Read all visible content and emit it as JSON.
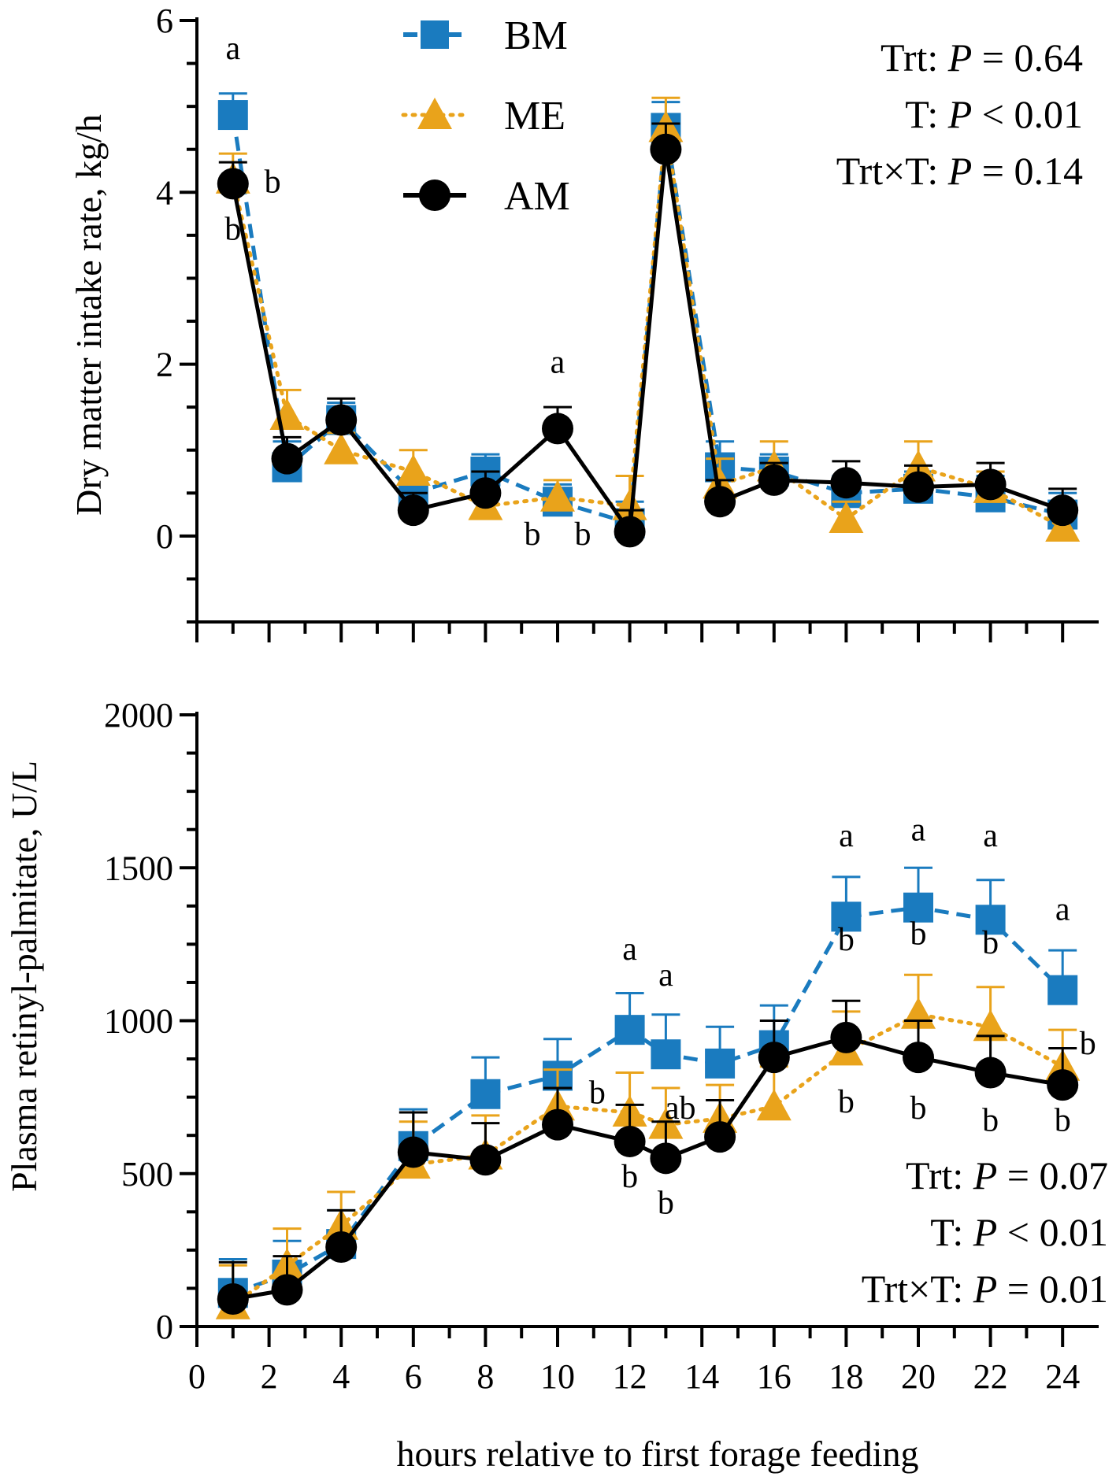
{
  "colors": {
    "BM": "#1a7bbf",
    "ME": "#e9a31b",
    "AM": "#000000"
  },
  "legend": {
    "BM": "BM",
    "ME": "ME",
    "AM": "AM"
  },
  "xlabel": "hours relative to first forage feeding",
  "chart_data": [
    {
      "type": "line",
      "ylabel": "Dry matter intake rate, kg/h",
      "ylim": [
        -1,
        6
      ],
      "yticks": [
        0,
        2,
        4,
        6
      ],
      "xlim": [
        0,
        25
      ],
      "x": [
        1,
        2.5,
        4,
        6,
        8,
        10,
        12,
        13,
        14.5,
        16,
        18,
        20,
        22,
        24
      ],
      "stats": {
        "trt": "Trt: ",
        "trt_p": "P",
        "trt_v": " = 0.64",
        "t": "T: ",
        "t_p": "P",
        "t_v": " < 0.01",
        "trtt": "Trt×T: ",
        "trtt_p": "P",
        "trtt_v": " = 0.14"
      },
      "series": [
        {
          "name": "BM",
          "values": [
            4.9,
            0.8,
            1.35,
            0.5,
            0.75,
            0.4,
            0.15,
            4.75,
            0.8,
            0.75,
            0.5,
            0.55,
            0.45,
            0.25
          ],
          "err": [
            0.25,
            0.3,
            0.2,
            0.15,
            0.2,
            0.2,
            0.25,
            0.3,
            0.3,
            0.2,
            0.2,
            0.2,
            0.25,
            0.25
          ]
        },
        {
          "name": "ME",
          "values": [
            4.15,
            1.4,
            1.0,
            0.75,
            0.35,
            0.45,
            0.35,
            4.75,
            0.6,
            0.8,
            0.2,
            0.8,
            0.55,
            0.1
          ],
          "err": [
            0.3,
            0.3,
            0.2,
            0.25,
            0.2,
            0.2,
            0.35,
            0.35,
            0.3,
            0.3,
            0.2,
            0.3,
            0.2,
            0.2
          ]
        },
        {
          "name": "AM",
          "values": [
            4.1,
            0.9,
            1.35,
            0.3,
            0.5,
            1.25,
            0.05,
            4.5,
            0.4,
            0.65,
            0.62,
            0.57,
            0.6,
            0.3
          ],
          "err": [
            0.25,
            0.25,
            0.25,
            0.2,
            0.25,
            0.25,
            0.25,
            0.3,
            0.25,
            0.2,
            0.25,
            0.25,
            0.25,
            0.25
          ]
        }
      ],
      "letters": [
        {
          "t": "a",
          "x": 1,
          "y": 5.55
        },
        {
          "t": "b",
          "x": 2.1,
          "y": 4.0
        },
        {
          "t": "b",
          "x": 1,
          "y": 3.45
        },
        {
          "t": "a",
          "x": 10,
          "y": 1.9
        },
        {
          "t": "b",
          "x": 9.3,
          "y": -0.1
        },
        {
          "t": "b",
          "x": 10.7,
          "y": -0.1
        }
      ]
    },
    {
      "type": "line",
      "ylabel": "Plasma retinyl-palmitate, U/L",
      "ylim": [
        0,
        2000
      ],
      "yticks": [
        0,
        500,
        1000,
        1500,
        2000
      ],
      "xlim": [
        0,
        25
      ],
      "xticks": [
        "0",
        "2",
        "4",
        "6",
        "8",
        "10",
        "12",
        "14",
        "16",
        "18",
        "20",
        "22",
        "24"
      ],
      "x": [
        1,
        2.5,
        4,
        6,
        8,
        10,
        12,
        13,
        14.5,
        16,
        18,
        20,
        22,
        24
      ],
      "stats": {
        "trt": "Trt: ",
        "trt_p": "P",
        "trt_v": " = 0.07",
        "t": "T: ",
        "t_p": "P",
        "t_v": " < 0.01",
        "trtt": "Trt×T: ",
        "trtt_p": "P",
        "trtt_v": " = 0.01"
      },
      "series": [
        {
          "name": "BM",
          "values": [
            110,
            170,
            270,
            590,
            760,
            820,
            970,
            890,
            860,
            920,
            1340,
            1370,
            1330,
            1100
          ],
          "err": [
            110,
            110,
            110,
            120,
            120,
            120,
            120,
            130,
            120,
            130,
            130,
            130,
            130,
            130
          ]
        },
        {
          "name": "ME",
          "values": [
            70,
            200,
            330,
            530,
            560,
            720,
            700,
            660,
            680,
            720,
            900,
            1020,
            980,
            850
          ],
          "err": [
            130,
            120,
            110,
            140,
            130,
            120,
            130,
            120,
            110,
            130,
            130,
            130,
            130,
            120
          ]
        },
        {
          "name": "AM",
          "values": [
            90,
            120,
            260,
            570,
            545,
            660,
            605,
            550,
            620,
            880,
            945,
            880,
            830,
            790
          ],
          "err": [
            120,
            110,
            120,
            130,
            120,
            120,
            120,
            120,
            120,
            120,
            120,
            120,
            120,
            120
          ]
        }
      ],
      "letters": [
        {
          "t": "a",
          "x": 12,
          "y": 1200
        },
        {
          "t": "a",
          "x": 13,
          "y": 1115
        },
        {
          "t": "b",
          "x": 11.1,
          "y": 730
        },
        {
          "t": "ab",
          "x": 13.4,
          "y": 680
        },
        {
          "t": "b",
          "x": 12,
          "y": 455
        },
        {
          "t": "b",
          "x": 13,
          "y": 370
        },
        {
          "t": "a",
          "x": 18,
          "y": 1570
        },
        {
          "t": "a",
          "x": 20,
          "y": 1590
        },
        {
          "t": "a",
          "x": 22,
          "y": 1570
        },
        {
          "t": "a",
          "x": 24,
          "y": 1330
        },
        {
          "t": "b",
          "x": 18,
          "y": 1230
        },
        {
          "t": "b",
          "x": 20,
          "y": 1250
        },
        {
          "t": "b",
          "x": 22,
          "y": 1220
        },
        {
          "t": "b",
          "x": 24.7,
          "y": 890
        },
        {
          "t": "b",
          "x": 18,
          "y": 700
        },
        {
          "t": "b",
          "x": 20,
          "y": 680
        },
        {
          "t": "b",
          "x": 22,
          "y": 640
        },
        {
          "t": "b",
          "x": 24,
          "y": 640
        }
      ]
    }
  ]
}
